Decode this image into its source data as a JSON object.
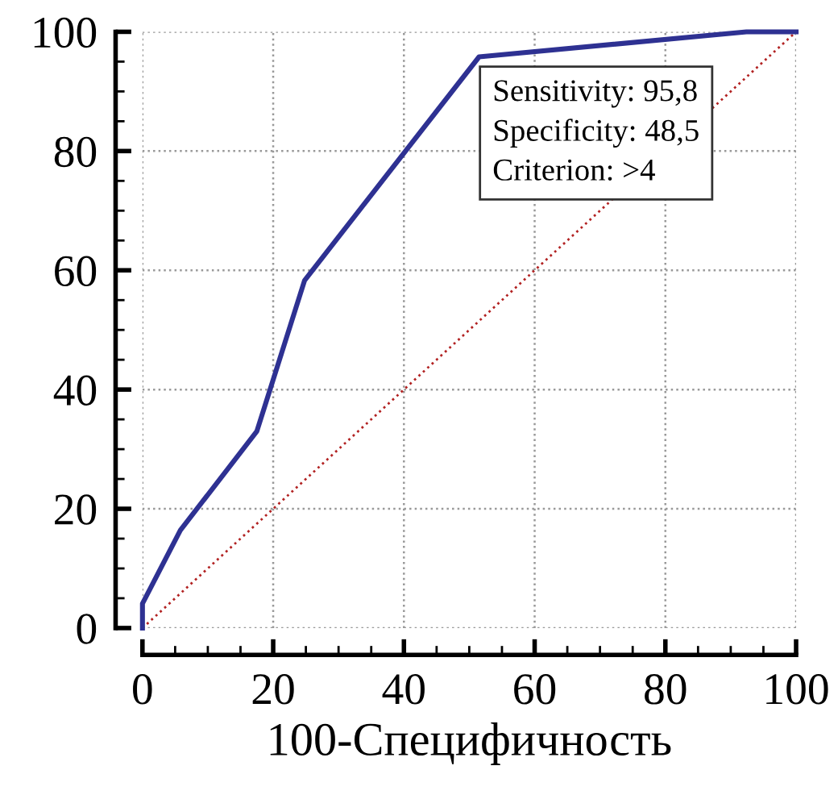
{
  "chart_data": {
    "type": "line",
    "xlabel": "100-Специфичность",
    "series": [
      {
        "color": "#2e3192",
        "x": [
          0,
          0,
          5.8,
          17.5,
          24.8,
          51.5,
          92.4,
          100
        ],
        "values": [
          0,
          4.1,
          16.4,
          33.0,
          58.3,
          95.8,
          100,
          100
        ],
        "line_style": "solid"
      },
      {
        "color": "#b22222",
        "x": [
          0,
          100
        ],
        "values": [
          0,
          100
        ],
        "line_style": "dotted"
      }
    ],
    "xlim": [
      0,
      100
    ],
    "ylim": [
      0,
      100
    ],
    "xticks": [
      0,
      20,
      40,
      60,
      80,
      100
    ],
    "yticks": [
      0,
      20,
      40,
      60,
      80,
      100
    ],
    "grid": true,
    "marker": "none",
    "annotations": [
      {
        "text": "Sensitivity: 95,8\nSpecificity: 48,5\nCriterion: >4",
        "x": 51.5,
        "y": 95.8
      }
    ]
  }
}
